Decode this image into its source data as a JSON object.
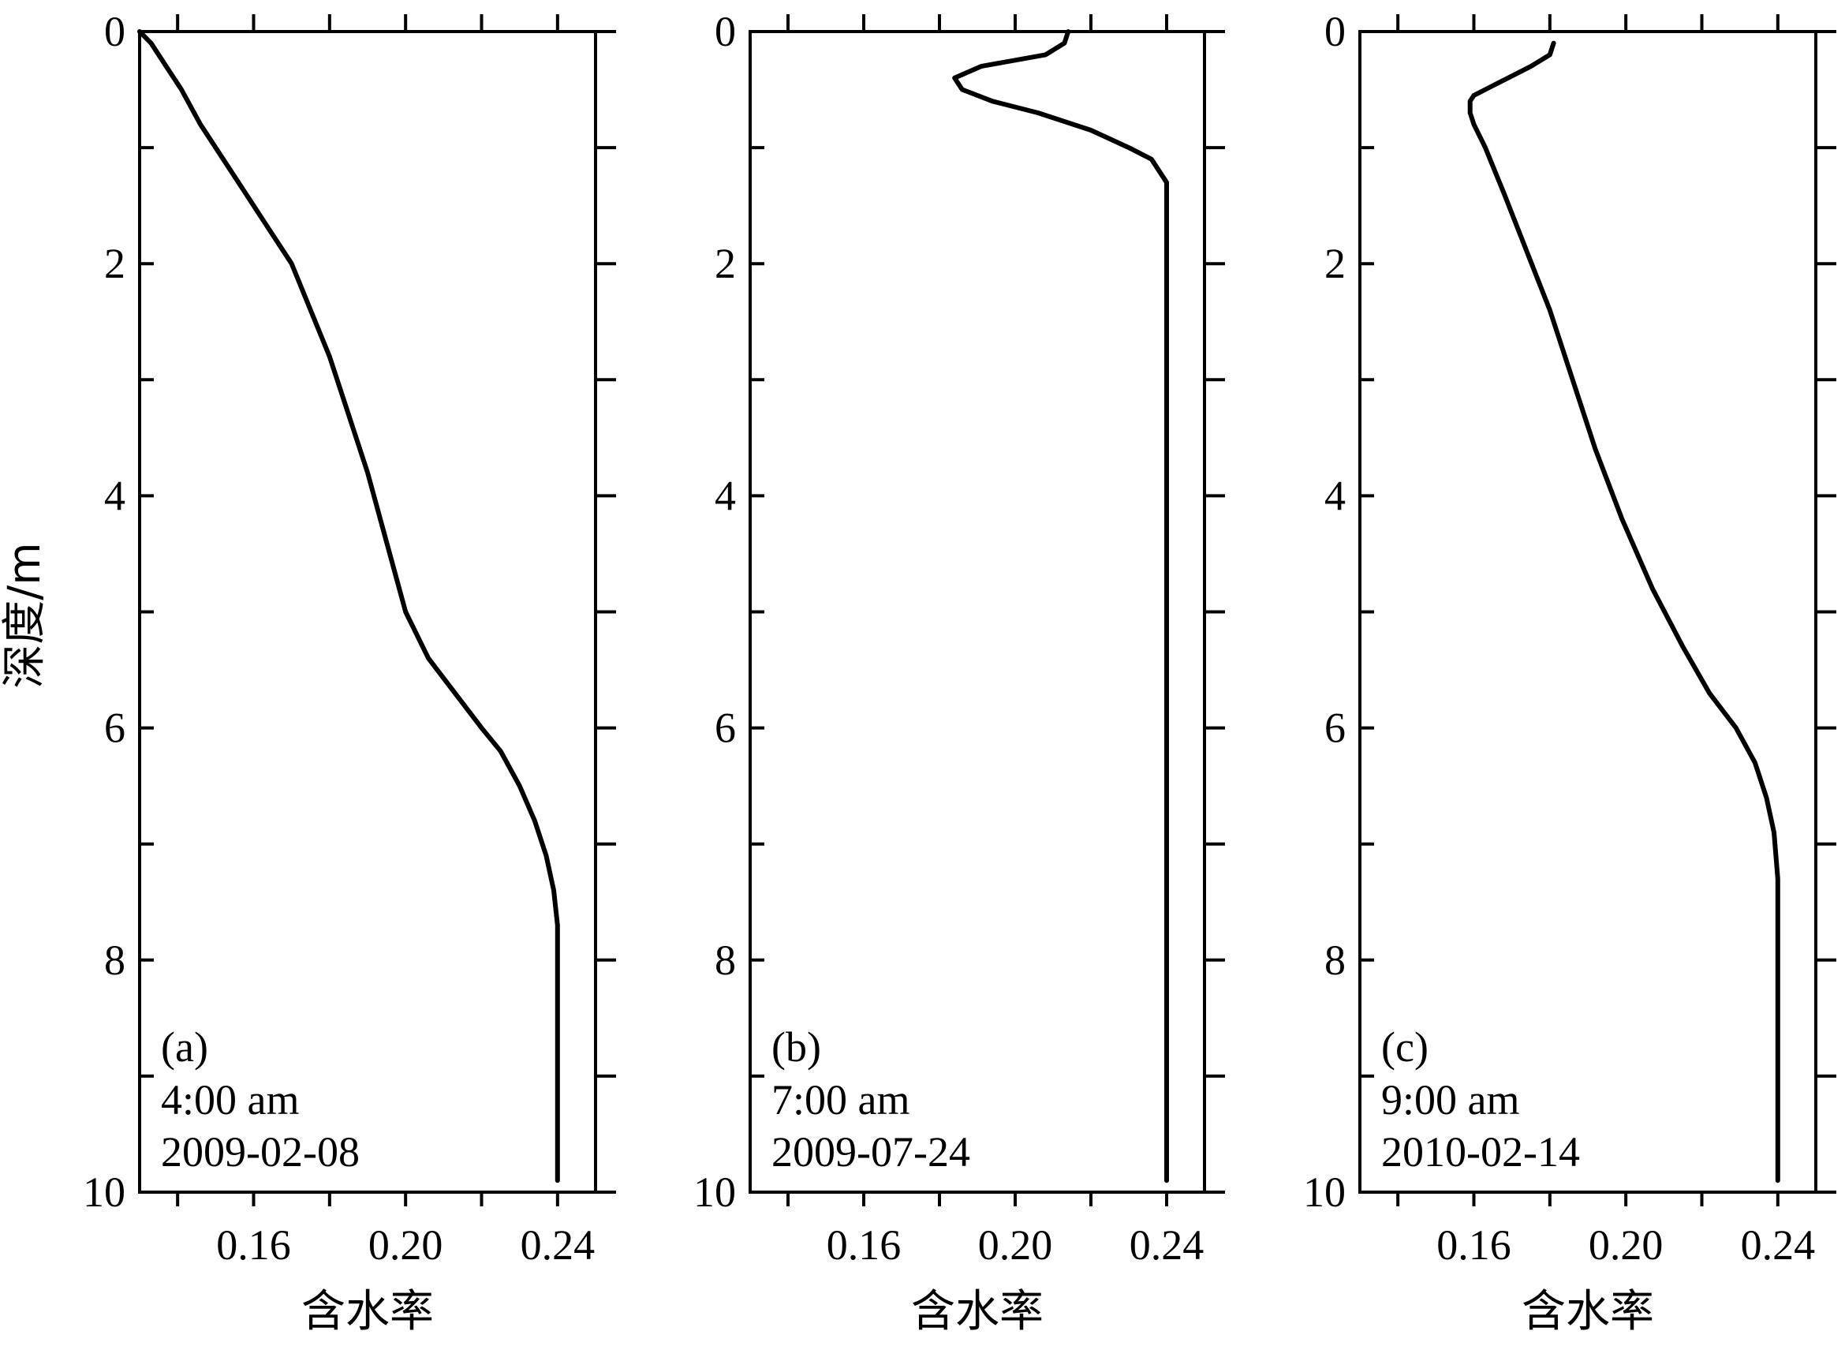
{
  "ylabel": "深度/m",
  "chart_data": [
    {
      "type": "line",
      "panel_label": "(a)",
      "time": "4:00 am",
      "date": "2009-02-08",
      "xlabel": "含水率",
      "ylabel": "深度/m",
      "xlim": [
        0.13,
        0.25
      ],
      "ylim": [
        10,
        0
      ],
      "y_inverted": true,
      "xticks": [
        0.16,
        0.2,
        0.24
      ],
      "xtick_labels": [
        "0.16",
        "0.20",
        "0.24"
      ],
      "yticks": [
        0,
        2,
        4,
        6,
        8,
        10
      ],
      "ytick_labels": [
        "0",
        "2",
        "4",
        "6",
        "8",
        "10"
      ],
      "series": [
        {
          "x": [
            0.13,
            0.133,
            0.137,
            0.141,
            0.146,
            0.152,
            0.158,
            0.164,
            0.17,
            0.175,
            0.18,
            0.185,
            0.19,
            0.195,
            0.2,
            0.206,
            0.213,
            0.22,
            0.225,
            0.23,
            0.234,
            0.237,
            0.239,
            0.24,
            0.24,
            0.24,
            0.24,
            0.24
          ],
          "y": [
            0.0,
            0.1,
            0.3,
            0.5,
            0.8,
            1.1,
            1.4,
            1.7,
            2.0,
            2.4,
            2.8,
            3.3,
            3.8,
            4.4,
            5.0,
            5.4,
            5.7,
            6.0,
            6.2,
            6.5,
            6.8,
            7.1,
            7.4,
            7.7,
            8.0,
            8.5,
            9.2,
            9.9
          ]
        }
      ]
    },
    {
      "type": "line",
      "panel_label": "(b)",
      "time": "7:00 am",
      "date": "2009-07-24",
      "xlabel": "含水率",
      "ylabel": "深度/m",
      "xlim": [
        0.13,
        0.25
      ],
      "ylim": [
        10,
        0
      ],
      "y_inverted": true,
      "xticks": [
        0.16,
        0.2,
        0.24
      ],
      "xtick_labels": [
        "0.16",
        "0.20",
        "0.24"
      ],
      "yticks": [
        0,
        2,
        4,
        6,
        8,
        10
      ],
      "ytick_labels": [
        "0",
        "2",
        "4",
        "6",
        "8",
        "10"
      ],
      "series": [
        {
          "x": [
            0.214,
            0.213,
            0.208,
            0.191,
            0.184,
            0.186,
            0.194,
            0.206,
            0.22,
            0.23,
            0.236,
            0.24,
            0.24,
            0.24,
            0.24
          ],
          "y": [
            0.0,
            0.1,
            0.2,
            0.3,
            0.4,
            0.5,
            0.6,
            0.7,
            0.85,
            1.0,
            1.1,
            1.3,
            2.0,
            5.0,
            9.9
          ]
        }
      ]
    },
    {
      "type": "line",
      "panel_label": "(c)",
      "time": "9:00 am",
      "date": "2010-02-14",
      "xlabel": "含水率",
      "ylabel": "深度/m",
      "xlim": [
        0.13,
        0.25
      ],
      "ylim": [
        10,
        0
      ],
      "y_inverted": true,
      "xticks": [
        0.16,
        0.2,
        0.24
      ],
      "xtick_labels": [
        "0.16",
        "0.20",
        "0.24"
      ],
      "yticks": [
        0,
        2,
        4,
        6,
        8,
        10
      ],
      "ytick_labels": [
        "0",
        "2",
        "4",
        "6",
        "8",
        "10"
      ],
      "series": [
        {
          "x": [
            0.181,
            0.18,
            0.175,
            0.169,
            0.163,
            0.16,
            0.159,
            0.159,
            0.16,
            0.163,
            0.168,
            0.174,
            0.18,
            0.186,
            0.192,
            0.199,
            0.207,
            0.215,
            0.222,
            0.229,
            0.234,
            0.237,
            0.239,
            0.24,
            0.24,
            0.24
          ],
          "y": [
            0.1,
            0.2,
            0.3,
            0.4,
            0.5,
            0.55,
            0.6,
            0.7,
            0.8,
            1.0,
            1.4,
            1.9,
            2.4,
            3.0,
            3.6,
            4.2,
            4.8,
            5.3,
            5.7,
            6.0,
            6.3,
            6.6,
            6.9,
            7.3,
            8.5,
            9.9
          ]
        }
      ]
    }
  ]
}
